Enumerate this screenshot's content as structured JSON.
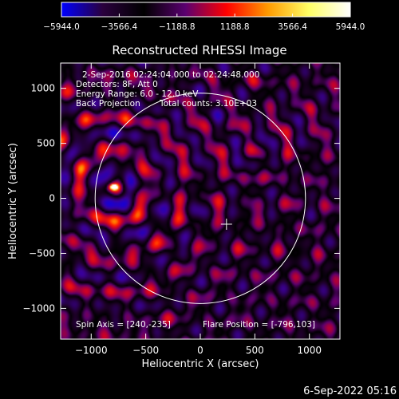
{
  "chart_data": {
    "type": "heatmap",
    "title": "Reconstructed RHESSI Image",
    "xlabel": "Heliocentric X (arcsec)",
    "ylabel": "Heliocentric Y (arcsec)",
    "xlim": [
      -1280,
      1280
    ],
    "ylim": [
      -1280,
      1230
    ],
    "x_ticks": [
      -1000,
      -500,
      0,
      500,
      1000
    ],
    "y_ticks": [
      -1000,
      -500,
      0,
      500,
      1000
    ],
    "x_tick_labels": [
      "−1000",
      "−500",
      "0",
      "500",
      "1000"
    ],
    "y_tick_labels": [
      "−1000",
      "−500",
      "0",
      "500",
      "1000"
    ],
    "colorbar": {
      "min": -5944.0,
      "max": 5944.0,
      "ticks": [
        -5944.0,
        -3566.4,
        -1188.8,
        1188.8,
        3566.4,
        5944.0
      ],
      "tick_labels": [
        "−5944.0",
        "−3566.4",
        "−1188.8",
        "1188.8",
        "3566.4",
        "5944.0"
      ],
      "colors": [
        "#0000ff",
        "#2a003d",
        "#000000",
        "#5a0070",
        "#ff0000",
        "#ff9a00",
        "#ffff66",
        "#ffffff"
      ]
    },
    "annotations": [
      "2-Sep-2016 02:24:04.000 to 02:24:48.000",
      "Detectors: 8F, Att 0",
      "Energy Range: 6.0 - 12.0 keV",
      "Back Projection",
      "Total counts: 3.10E+03"
    ],
    "spin_axis": "Spin Axis = [240,-235]",
    "flare_position": "Flare Position = [-796,103]",
    "solar_disk": {
      "center": [
        0,
        0
      ],
      "radius": 960
    },
    "crosshair": [
      240,
      -235
    ],
    "peak_source": {
      "center": [
        -796,
        103
      ],
      "value": 5944.0
    },
    "grid": false
  },
  "footer": {
    "timestamp": "6-Sep-2022 05:16"
  }
}
